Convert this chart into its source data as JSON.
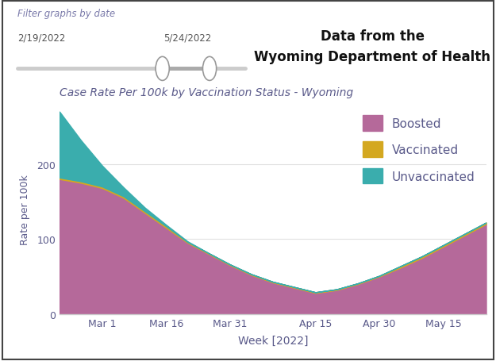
{
  "title_chart": "Case Rate Per 100k by Vaccination Status - Wyoming",
  "header_label": "Filter graphs by date",
  "date_start": "2/19/2022",
  "date_end": "5/24/2022",
  "data_source": "Data from the\nWyoming Department of Health",
  "xlabel": "Week [2022]",
  "ylabel": "Rate per 100k",
  "ylim": [
    0,
    280
  ],
  "yticks": [
    0,
    100,
    200
  ],
  "xtick_labels": [
    "Mar 1",
    "Mar 16",
    "Mar 31",
    "Apr 15",
    "Apr 30",
    "May 15"
  ],
  "x_numeric": [
    0,
    1,
    2,
    3,
    4,
    5,
    6,
    7,
    8,
    9,
    10,
    11,
    12,
    13,
    14,
    15,
    16,
    17,
    18,
    19,
    20
  ],
  "xtick_positions": [
    2,
    5,
    8,
    12,
    15,
    18
  ],
  "boosted": [
    180,
    175,
    168,
    155,
    135,
    115,
    95,
    80,
    65,
    52,
    42,
    35,
    28,
    32,
    40,
    50,
    62,
    75,
    90,
    105,
    120
  ],
  "vaccinated": [
    2,
    2,
    2,
    2,
    2,
    2,
    1,
    1,
    1,
    1,
    1,
    1,
    1,
    1,
    1,
    1,
    2,
    2,
    2,
    2,
    2
  ],
  "unvaccinated": [
    88,
    55,
    28,
    12,
    5,
    2,
    1,
    0,
    0,
    0,
    0,
    0,
    0,
    0,
    0,
    0,
    0,
    0,
    0,
    0,
    0
  ],
  "color_boosted": "#b5699a",
  "color_vaccinated": "#d4a820",
  "color_unvaccinated": "#3aadad",
  "title_color": "#5a5a8a",
  "axis_label_color": "#5a5a8a",
  "tick_label_color": "#5a5a8a",
  "header_color": "#7a7aaa",
  "date_color": "#555555",
  "data_source_color": "#111111",
  "background_color": "#ffffff",
  "border_color": "#444444",
  "grid_color": "#e0e0e0",
  "legend_labels": [
    "Boosted",
    "Vaccinated",
    "Unvaccinated"
  ],
  "legend_label_color": "#5a5a8a"
}
